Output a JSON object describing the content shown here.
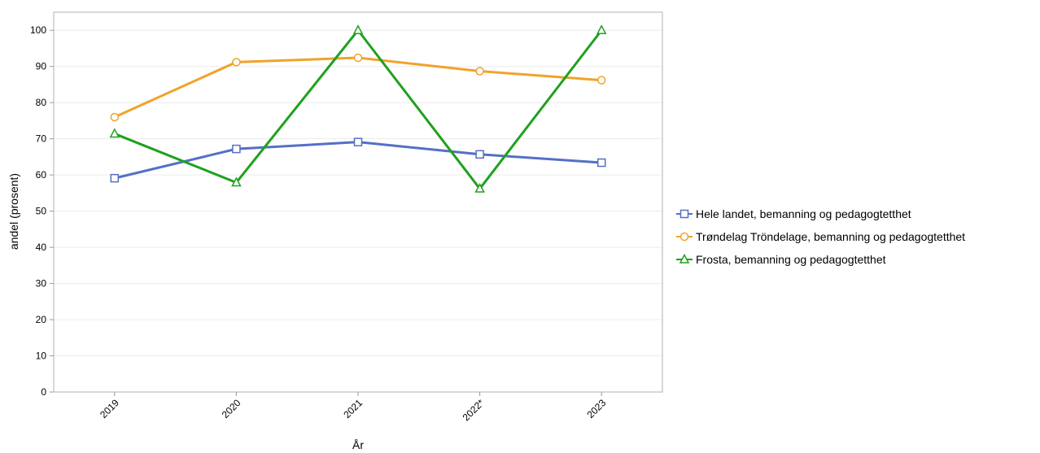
{
  "chart_data": {
    "type": "line",
    "title": "",
    "xlabel": "År",
    "ylabel": "andel (prosent)",
    "categories": [
      "2019",
      "2020",
      "2021",
      "2022*",
      "2023"
    ],
    "y_ticks": [
      "0",
      "10",
      "20",
      "30",
      "40",
      "50",
      "60",
      "70",
      "80",
      "90",
      "100"
    ],
    "ylim": [
      0,
      105
    ],
    "grid": true,
    "legend_position": "right",
    "series": [
      {
        "name": "Hele landet, bemanning og pedagogtetthet",
        "values": [
          59.1,
          67.2,
          69.1,
          65.7,
          63.4
        ],
        "color": "#5470c6",
        "marker": "square"
      },
      {
        "name": "Trøndelag Tröndelage, bemanning og pedagogtetthet",
        "values": [
          76.0,
          91.2,
          92.4,
          88.7,
          86.2
        ],
        "color": "#f0a32a",
        "marker": "circle"
      },
      {
        "name": "Frosta, bemanning og pedagogtetthet",
        "values": [
          71.4,
          57.9,
          100,
          56.2,
          100
        ],
        "color": "#1fa11f",
        "marker": "triangle"
      }
    ]
  }
}
